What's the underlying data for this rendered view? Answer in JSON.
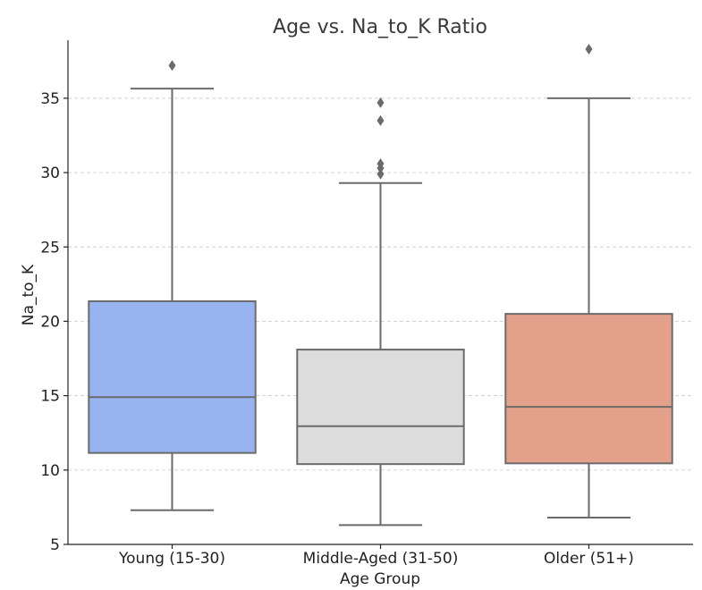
{
  "chart_data": {
    "type": "boxplot",
    "title": "Age vs. Na_to_K Ratio",
    "xlabel": "Age Group",
    "ylabel": "Na_to_K",
    "ylim": [
      5,
      38.9
    ],
    "yticks": [
      5,
      10,
      15,
      20,
      25,
      30,
      35
    ],
    "grid": "horizontal dashed",
    "categories": [
      "Young (15-30)",
      "Middle-Aged (31-50)",
      "Older (51+)"
    ],
    "colors": [
      "#97b3f0",
      "#dcdcdc",
      "#e3a08a"
    ],
    "line_color": "#6b6b6b",
    "boxes": [
      {
        "whisker_low": 7.3,
        "q1": 11.15,
        "median": 14.9,
        "q3": 21.35,
        "whisker_high": 35.65,
        "outliers": [
          37.2
        ]
      },
      {
        "whisker_low": 6.3,
        "q1": 10.4,
        "median": 12.95,
        "q3": 18.1,
        "whisker_high": 29.3,
        "outliers": [
          29.9,
          30.3,
          30.6,
          33.5,
          34.7
        ]
      },
      {
        "whisker_low": 6.8,
        "q1": 10.45,
        "median": 14.25,
        "q3": 20.5,
        "whisker_high": 35.0,
        "outliers": [
          38.3
        ]
      }
    ]
  }
}
